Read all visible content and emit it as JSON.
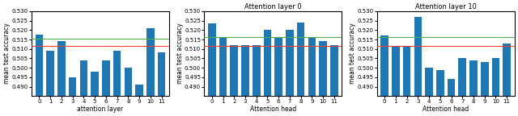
{
  "chart_data": [
    {
      "type": "bar",
      "xlabel": "attention layer",
      "ylabel": "mean test accuracy",
      "categories": [
        "0",
        "1",
        "2",
        "3",
        "4",
        "5",
        "6",
        "7",
        "8",
        "9",
        "10",
        "11"
      ],
      "values": [
        0.5175,
        0.509,
        0.514,
        0.495,
        0.504,
        0.498,
        0.504,
        0.509,
        0.5,
        0.491,
        0.521,
        0.508
      ],
      "reference_lines": [
        {
          "value": 0.5155,
          "color": "#4caf50"
        },
        {
          "value": 0.5115,
          "color": "#f44336"
        }
      ],
      "ylim": [
        0.485,
        0.53
      ],
      "yticks": [
        {
          "value": 0.49,
          "label": "0.490"
        },
        {
          "value": 0.495,
          "label": "0.495"
        },
        {
          "value": 0.5,
          "label": "0.500"
        },
        {
          "value": 0.505,
          "label": "0.505"
        },
        {
          "value": 0.51,
          "label": "0.510"
        },
        {
          "value": 0.515,
          "label": "0.515"
        },
        {
          "value": 0.52,
          "label": "0.520"
        },
        {
          "value": 0.525,
          "label": "0.525"
        },
        {
          "value": 0.53,
          "label": "0.530"
        }
      ]
    },
    {
      "type": "bar",
      "title": "Attention layer 0",
      "xlabel": "Attention head",
      "ylabel": "mean test accuracy",
      "categories": [
        "0",
        "1",
        "2",
        "3",
        "4",
        "5",
        "6",
        "7",
        "8",
        "9",
        "10",
        "11"
      ],
      "values": [
        0.5235,
        0.516,
        0.512,
        0.512,
        0.512,
        0.52,
        0.516,
        0.52,
        0.524,
        0.516,
        0.514,
        0.512
      ],
      "reference_lines": [
        {
          "value": 0.5165,
          "color": "#4caf50"
        },
        {
          "value": 0.5115,
          "color": "#f44336"
        }
      ],
      "ylim": [
        0.485,
        0.53
      ],
      "yticks": [
        {
          "value": 0.49,
          "label": "0.490"
        },
        {
          "value": 0.495,
          "label": "0.495"
        },
        {
          "value": 0.5,
          "label": "0.500"
        },
        {
          "value": 0.505,
          "label": "0.505"
        },
        {
          "value": 0.51,
          "label": "0.510"
        },
        {
          "value": 0.515,
          "label": "0.515"
        },
        {
          "value": 0.52,
          "label": "0.520"
        },
        {
          "value": 0.525,
          "label": "0.525"
        },
        {
          "value": 0.53,
          "label": "0.530"
        }
      ]
    },
    {
      "type": "bar",
      "title": "Attention layer 10",
      "xlabel": "Attention head",
      "ylabel": "mean test accuracy",
      "categories": [
        "0",
        "1",
        "2",
        "3",
        "4",
        "5",
        "6",
        "7",
        "8",
        "9",
        "10",
        "11"
      ],
      "values": [
        0.517,
        0.511,
        0.511,
        0.527,
        0.5,
        0.499,
        0.494,
        0.505,
        0.504,
        0.503,
        0.505,
        0.513
      ],
      "reference_lines": [
        {
          "value": 0.5165,
          "color": "#4caf50"
        },
        {
          "value": 0.5115,
          "color": "#f44336"
        }
      ],
      "ylim": [
        0.485,
        0.53
      ],
      "yticks": [
        {
          "value": 0.49,
          "label": "0.490"
        },
        {
          "value": 0.495,
          "label": "0.495"
        },
        {
          "value": 0.5,
          "label": "0.500"
        },
        {
          "value": 0.505,
          "label": "0.505"
        },
        {
          "value": 0.51,
          "label": "0.510"
        },
        {
          "value": 0.515,
          "label": "0.515"
        },
        {
          "value": 0.52,
          "label": "0.520"
        },
        {
          "value": 0.525,
          "label": "0.525"
        },
        {
          "value": 0.53,
          "label": "0.530"
        }
      ]
    }
  ]
}
